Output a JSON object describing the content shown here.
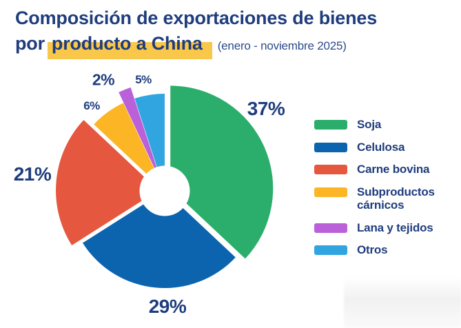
{
  "theme": {
    "navy": "#1F3D7D",
    "subtitle_color": "#2E4A8C",
    "highlight_color": "#F9C84B",
    "background": "#FFFFFF"
  },
  "header": {
    "title_line1": "Composición de exportaciones de bienes",
    "title_line2_prefix": "por",
    "title_line2_highlight": "producto a China",
    "subtitle": "(enero - noviembre 2025)"
  },
  "chart_data": {
    "type": "pie",
    "variant": "donut",
    "title": "Composición de exportaciones de bienes por producto a China",
    "period": "enero - noviembre 2025",
    "unit": "%",
    "start_angle_deg": 0,
    "direction": "clockwise",
    "legend_position": "right",
    "labels": "percent-outside",
    "slices": [
      {
        "label": "Soja",
        "value": 37,
        "color": "#2BAE6B",
        "exploded": true
      },
      {
        "label": "Celulosa",
        "value": 29,
        "color": "#0D64AE",
        "exploded": false
      },
      {
        "label": "Carne bovina",
        "value": 21,
        "color": "#E5573F",
        "exploded": true
      },
      {
        "label": "Subproductos cárnicos",
        "value": 6,
        "color": "#FCB525",
        "exploded": false
      },
      {
        "label": "Lana y tejidos",
        "value": 2,
        "color": "#BA60D9",
        "exploded": true
      },
      {
        "label": "Otros",
        "value": 5,
        "color": "#31A5DF",
        "exploded": false
      }
    ]
  }
}
